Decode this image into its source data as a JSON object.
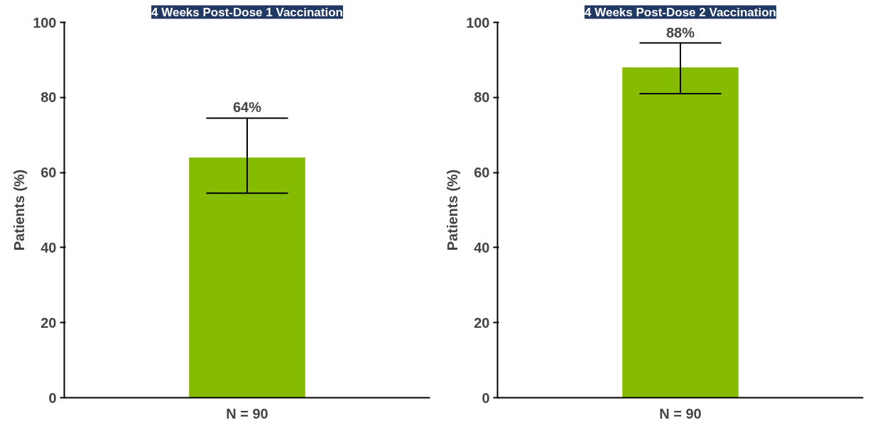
{
  "chart_data": [
    {
      "type": "bar",
      "title": "4 Weeks Post-Dose 1 Vaccination",
      "ylabel": "Patients (%)",
      "categories": [
        "N = 90"
      ],
      "values": [
        64
      ],
      "errors": [
        [
          54.5,
          74.5
        ]
      ],
      "value_labels": [
        "64%"
      ],
      "color": "#86bc00",
      "ylim": [
        0,
        100
      ],
      "yticks": [
        0,
        20,
        40,
        60,
        80,
        100
      ],
      "grid": false
    },
    {
      "type": "bar",
      "title": "4 Weeks Post-Dose 2 Vaccination",
      "ylabel": "Patients (%)",
      "categories": [
        "N = 90"
      ],
      "values": [
        88
      ],
      "errors": [
        [
          81,
          94.5
        ]
      ],
      "value_labels": [
        "88%"
      ],
      "color": "#86bc00",
      "ylim": [
        0,
        100
      ],
      "yticks": [
        0,
        20,
        40,
        60,
        80,
        100
      ],
      "grid": false
    }
  ]
}
